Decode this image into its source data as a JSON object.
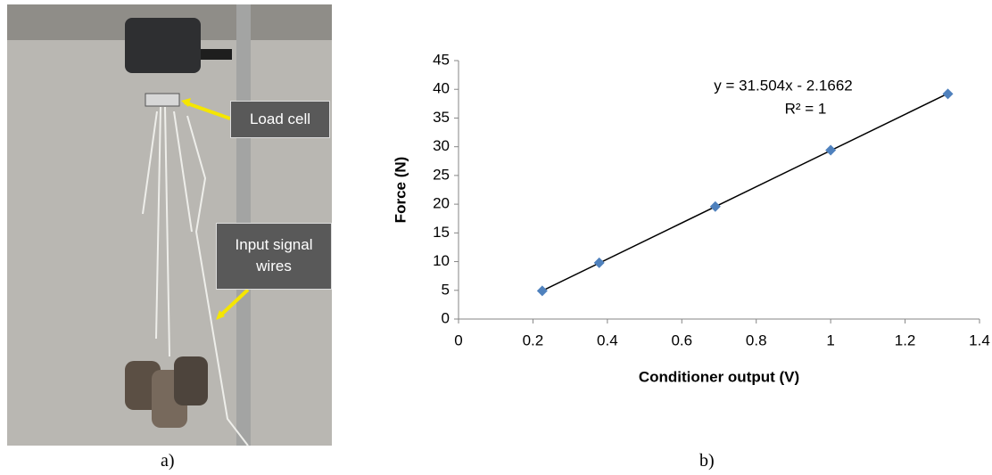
{
  "photo": {
    "callouts": [
      "Load cell",
      "Input signal wires"
    ]
  },
  "panel_labels": [
    "a)",
    "b)"
  ],
  "chart_data": {
    "type": "scatter",
    "x_label": "Conditioner output (V)",
    "y_label": "Force (N)",
    "x": [
      0.225,
      0.378,
      0.69,
      1.0,
      1.315
    ],
    "series": [
      {
        "color": "#4f81bd",
        "values": [
          4.9,
          9.8,
          19.6,
          29.4,
          39.2
        ]
      }
    ],
    "trendline": {
      "slope": 31.504,
      "intercept": -2.1662,
      "color": "#000000",
      "equation": "y = 31.504x - 2.1662",
      "r_squared": "R² = 1"
    },
    "xlim": [
      0,
      1.4
    ],
    "xticks": [
      0,
      0.2,
      0.4,
      0.6,
      0.8,
      1,
      1.2,
      1.4
    ],
    "ylim": [
      0,
      45
    ],
    "yticks": [
      0,
      5,
      10,
      15,
      20,
      25,
      30,
      35,
      40,
      45
    ],
    "grid": false
  }
}
